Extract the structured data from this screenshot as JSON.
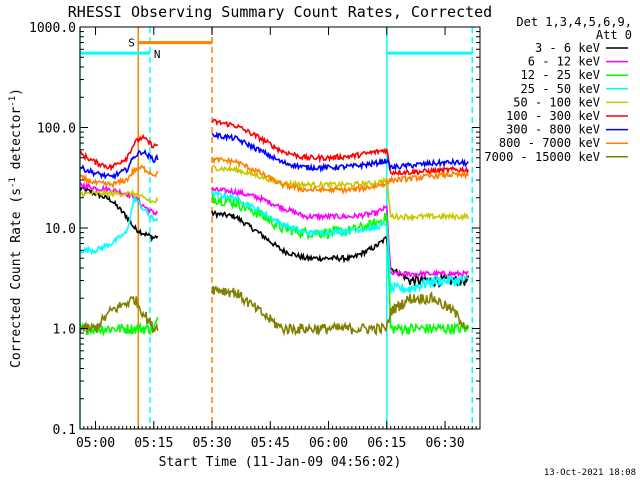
{
  "chart_data": {
    "type": "line",
    "title": "RHESSI Observing Summary Count Rates, Corrected",
    "ylabel_main": "Corrected Count Rate (s",
    "ylabel_sup": "-1",
    "ylabel_mid": " detector",
    "ylabel_end": ")",
    "xlabel": "Start Time (11-Jan-09 04:56:02)",
    "y_scale": "log",
    "ylim": [
      0.1,
      1000.0
    ],
    "y_ticks": [
      {
        "value": 1000.0,
        "label": "1000.0"
      },
      {
        "value": 100.0,
        "label": "100.0"
      },
      {
        "value": 10.0,
        "label": "10.0"
      },
      {
        "value": 1.0,
        "label": "1.0"
      },
      {
        "value": 0.1,
        "label": "0.1"
      }
    ],
    "xlim_minutes": [
      0,
      103
    ],
    "x_ticks": [
      {
        "min": 4,
        "label": "05:00"
      },
      {
        "min": 19,
        "label": "05:15"
      },
      {
        "min": 34,
        "label": "05:30"
      },
      {
        "min": 49,
        "label": "05:45"
      },
      {
        "min": 64,
        "label": "06:00"
      },
      {
        "min": 79,
        "label": "06:15"
      },
      {
        "min": 94,
        "label": "06:30"
      }
    ],
    "legend_header": [
      "Det 1,3,4,5,6,9,",
      "Att 0"
    ],
    "legend_position": "right",
    "data_gap_minutes": [
      20,
      34
    ],
    "series": [
      {
        "name": "3 - 6 keV",
        "color": "#000000",
        "x": [
          0,
          4,
          8,
          12,
          14,
          16,
          19,
          34,
          40,
          46,
          52,
          58,
          64,
          70,
          76,
          79,
          80,
          85,
          91,
          96,
          100
        ],
        "y": [
          25,
          22,
          19,
          13,
          10,
          9,
          8,
          14,
          13,
          9,
          6,
          5,
          5,
          5,
          6.5,
          8,
          4,
          3,
          3,
          3,
          3
        ]
      },
      {
        "name": "6 - 12 keV",
        "color": "#ff00ff",
        "x": [
          0,
          4,
          8,
          12,
          14,
          16,
          19,
          34,
          40,
          46,
          52,
          58,
          64,
          70,
          76,
          79,
          80,
          85,
          91,
          96,
          100
        ],
        "y": [
          27,
          25,
          24,
          22,
          20,
          17,
          14,
          24,
          23,
          20,
          16,
          13,
          13,
          13,
          14,
          16,
          3.5,
          3.5,
          3.5,
          3.5,
          3.5
        ]
      },
      {
        "name": "12 - 25 keV",
        "color": "#00ff00",
        "x": [
          0,
          4,
          8,
          12,
          14,
          16,
          19,
          34,
          40,
          46,
          52,
          58,
          64,
          70,
          76,
          79,
          80,
          85,
          91,
          96,
          100
        ],
        "y": [
          1.0,
          1.0,
          1.0,
          1.0,
          1.0,
          1.0,
          1.0,
          20,
          18,
          14,
          10,
          9,
          9,
          9.5,
          11,
          13,
          1.0,
          1.0,
          1.0,
          1.0,
          1.0
        ]
      },
      {
        "name": "25 - 50 keV",
        "color": "#00ffff",
        "x": [
          0,
          4,
          8,
          12,
          14,
          16,
          19,
          34,
          40,
          46,
          52,
          58,
          64,
          70,
          76,
          79,
          80,
          85,
          91,
          96,
          100
        ],
        "y": [
          6,
          6,
          7,
          9,
          20,
          16,
          12,
          22,
          20,
          15,
          11,
          9,
          9,
          9.5,
          10,
          11,
          2.5,
          2.5,
          3,
          3,
          3
        ]
      },
      {
        "name": "50 - 100 keV",
        "color": "#c8c800",
        "x": [
          0,
          4,
          8,
          12,
          14,
          16,
          19,
          34,
          40,
          46,
          52,
          58,
          64,
          70,
          76,
          79,
          80,
          85,
          91,
          96,
          100
        ],
        "y": [
          22,
          22,
          22,
          22,
          22,
          20,
          18,
          40,
          38,
          33,
          28,
          27,
          27,
          27,
          28,
          30,
          13,
          13,
          13,
          13,
          13
        ]
      },
      {
        "name": "100 - 300 keV",
        "color": "#ff0000",
        "x": [
          0,
          4,
          8,
          12,
          14,
          16,
          19,
          34,
          40,
          46,
          52,
          58,
          64,
          70,
          76,
          79,
          80,
          85,
          91,
          96,
          100
        ],
        "y": [
          55,
          45,
          40,
          50,
          70,
          80,
          65,
          115,
          105,
          80,
          58,
          50,
          50,
          52,
          57,
          60,
          36,
          36,
          37,
          38,
          38
        ]
      },
      {
        "name": "300 - 800 keV",
        "color": "#0000ff",
        "x": [
          0,
          4,
          8,
          12,
          14,
          16,
          19,
          34,
          40,
          46,
          52,
          58,
          64,
          70,
          76,
          79,
          80,
          85,
          91,
          96,
          100
        ],
        "y": [
          40,
          35,
          32,
          38,
          52,
          58,
          48,
          85,
          78,
          60,
          45,
          40,
          40,
          41,
          44,
          47,
          40,
          42,
          44,
          45,
          44
        ]
      },
      {
        "name": "800 - 7000 keV",
        "color": "#ff8000",
        "x": [
          0,
          4,
          8,
          12,
          14,
          16,
          19,
          34,
          40,
          46,
          52,
          58,
          64,
          70,
          76,
          79,
          80,
          85,
          91,
          96,
          100
        ],
        "y": [
          32,
          28,
          27,
          30,
          38,
          40,
          34,
          48,
          46,
          36,
          27,
          24,
          24,
          24,
          26,
          28,
          30,
          31,
          33,
          34,
          33
        ]
      },
      {
        "name": "7000 - 15000 keV",
        "color": "#808000",
        "x": [
          0,
          4,
          8,
          12,
          14,
          16,
          19,
          34,
          40,
          46,
          52,
          58,
          64,
          70,
          76,
          79,
          80,
          85,
          91,
          96,
          100
        ],
        "y": [
          1.0,
          1.0,
          1.5,
          1.8,
          2.0,
          1.5,
          1.0,
          2.5,
          2.3,
          1.5,
          1.0,
          1.0,
          1.0,
          1.0,
          1.0,
          1.0,
          1.5,
          2.0,
          2.0,
          1.5,
          1.0
        ]
      }
    ],
    "markers": {
      "s_label": "S",
      "n_label": "N",
      "saa_bar_minutes": [
        15,
        34
      ],
      "saa_bar_value": 700,
      "night_bars": [
        {
          "from": 0,
          "to": 18,
          "value": 550
        },
        {
          "from": 79,
          "to": 101,
          "value": 550
        }
      ],
      "solid_lines": [
        {
          "min": 0,
          "color": "#00ffff"
        },
        {
          "min": 15,
          "color": "#ff8000"
        },
        {
          "min": 79,
          "color": "#00ffff"
        }
      ],
      "dashed_lines": [
        {
          "min": 18,
          "color": "#00ffff"
        },
        {
          "min": 34,
          "color": "#ff8000"
        },
        {
          "min": 101,
          "color": "#00ffff"
        }
      ]
    },
    "footer_date": "13-Oct-2021 18:08"
  }
}
